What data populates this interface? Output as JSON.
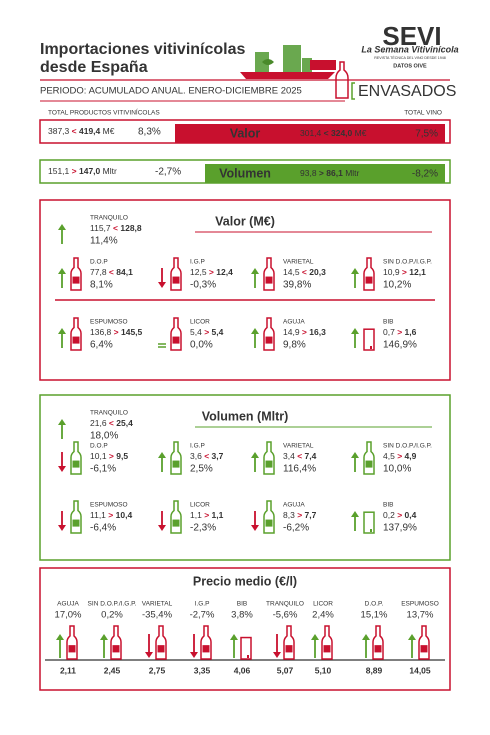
{
  "header": {
    "title_line1": "Importaciones vitivinícolas",
    "title_line2": "desde España",
    "logo": {
      "brand": "SEVI",
      "name": "La Semana Vitivinícola",
      "tagline": "REVISTA TÉCNICA DEL VINO DESDE 1948",
      "source": "DATOS OIVE"
    },
    "period": "PERIODO: ACUMULADO ANUAL. ENERO-DICIEMBRE 2025",
    "segment": "ENVASADOS"
  },
  "totals": {
    "left_heading": "TOTAL PRODUCTOS VITIVINÍCOLAS",
    "right_heading": "TOTAL VINO",
    "rows": [
      {
        "label": "Valor",
        "left": {
          "from": "387,3",
          "op": "<",
          "to": "419,4",
          "unit": "M€",
          "change": "8,3%"
        },
        "right": {
          "from": "301,4",
          "op": "<",
          "to": "324,0",
          "unit": "M€",
          "change": "7,5%"
        }
      },
      {
        "label": "Volumen",
        "left": {
          "from": "151,1",
          "op": ">",
          "to": "147,0",
          "unit": "Mltr",
          "change": "-2,7%"
        },
        "right": {
          "from": "93,8",
          "op": ">",
          "to": "86,1",
          "unit": "Mltr",
          "change": "-8,2%"
        }
      }
    ]
  },
  "valor": {
    "title": "Valor (M€)",
    "items": [
      {
        "name": "TRANQUILO",
        "from": "115,7",
        "op": "<",
        "to": "128,8",
        "change": "11,4%"
      },
      {
        "name": "D.O.P",
        "from": "77,8",
        "op": "<",
        "to": "84,1",
        "change": "8,1%"
      },
      {
        "name": "I.G.P",
        "from": "12,5",
        "op": ">",
        "to": "12,4",
        "change": "-0,3%"
      },
      {
        "name": "VARIETAL",
        "from": "14,5",
        "op": "<",
        "to": "20,3",
        "change": "39,8%"
      },
      {
        "name": "SIN D.O.P./I.G.P.",
        "from": "10,9",
        "op": ">",
        "to": "12,1",
        "change": "10,2%"
      },
      {
        "name": "ESPUMOSO",
        "from": "136,8",
        "op": ">",
        "to": "145,5",
        "change": "6,4%"
      },
      {
        "name": "LICOR",
        "from": "5,4",
        "op": ">",
        "to": "5,4",
        "change": "0,0%"
      },
      {
        "name": "AGUJA",
        "from": "14,9",
        "op": ">",
        "to": "16,3",
        "change": "9,8%"
      },
      {
        "name": "BIB",
        "from": "0,7",
        "op": ">",
        "to": "1,6",
        "change": "146,9%"
      }
    ]
  },
  "volumen": {
    "title": "Volumen (Mltr)",
    "items": [
      {
        "name": "TRANQUILO",
        "from": "21,6",
        "op": "<",
        "to": "25,4",
        "change": "18,0%"
      },
      {
        "name": "D.O.P",
        "from": "10,1",
        "op": ">",
        "to": "9,5",
        "change": "-6,1%"
      },
      {
        "name": "I.G.P",
        "from": "3,6",
        "op": "<",
        "to": "3,7",
        "change": "2,5%"
      },
      {
        "name": "VARIETAL",
        "from": "3,4",
        "op": "<",
        "to": "7,4",
        "change": "116,4%"
      },
      {
        "name": "SIN D.O.P./I.G.P.",
        "from": "4,5",
        "op": ">",
        "to": "4,9",
        "change": "10,0%"
      },
      {
        "name": "ESPUMOSO",
        "from": "11,1",
        "op": ">",
        "to": "10,4",
        "change": "-6,4%"
      },
      {
        "name": "LICOR",
        "from": "1,1",
        "op": ">",
        "to": "1,1",
        "change": "-2,3%"
      },
      {
        "name": "AGUJA",
        "from": "8,3",
        "op": ">",
        "to": "7,7",
        "change": "-6,2%"
      },
      {
        "name": "BIB",
        "from": "0,2",
        "op": ">",
        "to": "0,4",
        "change": "137,9%"
      }
    ]
  },
  "precio": {
    "title": "Precio medio (€/l)",
    "items": [
      {
        "name": "AGUJA",
        "change": "17,0%",
        "price": "2,11"
      },
      {
        "name": "SIN D.O.P./I.G.P.",
        "change": "0,2%",
        "price": "2,45"
      },
      {
        "name": "VARIETAL",
        "change": "-35,4%",
        "price": "2,75"
      },
      {
        "name": "I.G.P",
        "change": "-2,7%",
        "price": "3,35"
      },
      {
        "name": "BIB",
        "change": "3,8%",
        "price": "4,06"
      },
      {
        "name": "TRANQUILO",
        "change": "-5,6%",
        "price": "5,07"
      },
      {
        "name": "LICOR",
        "change": "2,4%",
        "price": "5,10"
      },
      {
        "name": "D.O.P.",
        "change": "15,1%",
        "price": "8,89"
      },
      {
        "name": "ESPUMOSO",
        "change": "13,7%",
        "price": "14,05"
      }
    ]
  }
}
